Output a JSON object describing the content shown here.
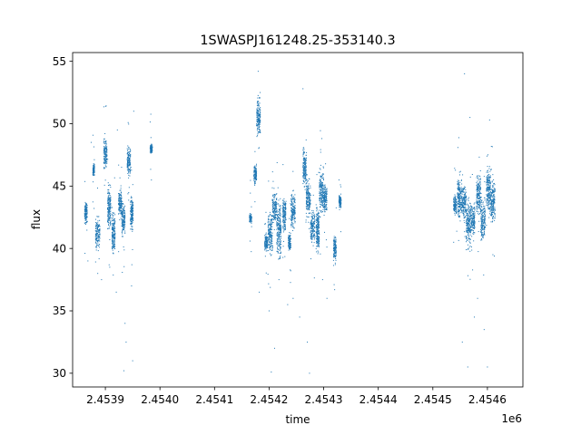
{
  "chart_data": {
    "type": "scatter",
    "title": "1SWASPJ161248.25-353140.3",
    "xlabel": "time",
    "ylabel": "flux",
    "x_offset_label": "1e6",
    "xlim": [
      2453840,
      2454665
    ],
    "ylim": [
      28.9,
      55.7
    ],
    "x_ticks": [
      2453900,
      2454000,
      2454100,
      2454200,
      2454300,
      2454400,
      2454500,
      2454600
    ],
    "x_tick_labels": [
      "2.4539",
      "2.4540",
      "2.4541",
      "2.4542",
      "2.4543",
      "2.4544",
      "2.4545",
      "2.4546"
    ],
    "y_ticks": [
      30,
      35,
      40,
      45,
      50,
      55
    ],
    "y_tick_labels": [
      "30",
      "35",
      "40",
      "45",
      "50",
      "55"
    ],
    "grid": false,
    "marker_color": "#1f77b4",
    "clusters": [
      {
        "x0": 2453862,
        "x1": 2453867,
        "ymin": 41.8,
        "ymax": 44.0
      },
      {
        "x0": 2453877,
        "x1": 2453880,
        "ymin": 45.5,
        "ymax": 47.0
      },
      {
        "x0": 2453882,
        "x1": 2453890,
        "ymin": 39.5,
        "ymax": 42.8
      },
      {
        "x0": 2453897,
        "x1": 2453903,
        "ymin": 46.0,
        "ymax": 49.2
      },
      {
        "x0": 2453904,
        "x1": 2453910,
        "ymin": 41.0,
        "ymax": 45.5
      },
      {
        "x0": 2453912,
        "x1": 2453918,
        "ymin": 39.2,
        "ymax": 43.5
      },
      {
        "x0": 2453924,
        "x1": 2453930,
        "ymin": 42.0,
        "ymax": 45.2
      },
      {
        "x0": 2453930,
        "x1": 2453936,
        "ymin": 40.5,
        "ymax": 44.0
      },
      {
        "x0": 2453940,
        "x1": 2453946,
        "ymin": 45.5,
        "ymax": 48.5
      },
      {
        "x0": 2453946,
        "x1": 2453951,
        "ymin": 41.0,
        "ymax": 44.5
      },
      {
        "x0": 2453982,
        "x1": 2453986,
        "ymin": 47.5,
        "ymax": 48.5
      },
      {
        "x0": 2454164,
        "x1": 2454168,
        "ymin": 41.8,
        "ymax": 43.0
      },
      {
        "x0": 2454172,
        "x1": 2454177,
        "ymin": 45.0,
        "ymax": 47.0
      },
      {
        "x0": 2454177,
        "x1": 2454184,
        "ymin": 48.5,
        "ymax": 52.5
      },
      {
        "x0": 2454192,
        "x1": 2454198,
        "ymin": 39.5,
        "ymax": 41.5
      },
      {
        "x0": 2454198,
        "x1": 2454206,
        "ymin": 39.0,
        "ymax": 43.5
      },
      {
        "x0": 2454206,
        "x1": 2454214,
        "ymin": 41.5,
        "ymax": 45.0
      },
      {
        "x0": 2454214,
        "x1": 2454222,
        "ymin": 38.5,
        "ymax": 44.5
      },
      {
        "x0": 2454225,
        "x1": 2454231,
        "ymin": 41.0,
        "ymax": 44.5
      },
      {
        "x0": 2454235,
        "x1": 2454240,
        "ymin": 39.5,
        "ymax": 41.5
      },
      {
        "x0": 2454240,
        "x1": 2454248,
        "ymin": 41.0,
        "ymax": 45.0
      },
      {
        "x0": 2454262,
        "x1": 2454268,
        "ymin": 44.5,
        "ymax": 48.5
      },
      {
        "x0": 2454268,
        "x1": 2454276,
        "ymin": 42.0,
        "ymax": 46.0
      },
      {
        "x0": 2454276,
        "x1": 2454284,
        "ymin": 40.0,
        "ymax": 43.5
      },
      {
        "x0": 2454286,
        "x1": 2454292,
        "ymin": 39.0,
        "ymax": 44.0
      },
      {
        "x0": 2454292,
        "x1": 2454300,
        "ymin": 42.0,
        "ymax": 47.0
      },
      {
        "x0": 2454300,
        "x1": 2454306,
        "ymin": 42.5,
        "ymax": 45.5
      },
      {
        "x0": 2454318,
        "x1": 2454323,
        "ymin": 38.5,
        "ymax": 41.5
      },
      {
        "x0": 2454328,
        "x1": 2454332,
        "ymin": 43.0,
        "ymax": 44.5
      },
      {
        "x0": 2454538,
        "x1": 2454544,
        "ymin": 42.5,
        "ymax": 44.5
      },
      {
        "x0": 2454545,
        "x1": 2454553,
        "ymin": 41.5,
        "ymax": 46.5
      },
      {
        "x0": 2454553,
        "x1": 2454561,
        "ymin": 42.0,
        "ymax": 45.5
      },
      {
        "x0": 2454561,
        "x1": 2454569,
        "ymin": 39.5,
        "ymax": 44.5
      },
      {
        "x0": 2454569,
        "x1": 2454577,
        "ymin": 40.5,
        "ymax": 44.0
      },
      {
        "x0": 2454580,
        "x1": 2454588,
        "ymin": 42.0,
        "ymax": 46.5
      },
      {
        "x0": 2454588,
        "x1": 2454596,
        "ymin": 40.0,
        "ymax": 44.5
      },
      {
        "x0": 2454598,
        "x1": 2454606,
        "ymin": 42.0,
        "ymax": 47.5
      },
      {
        "x0": 2454606,
        "x1": 2454614,
        "ymin": 41.5,
        "ymax": 46.0
      }
    ],
    "outliers": [
      [
        2453868,
        39.0
      ],
      [
        2453874,
        48.5
      ],
      [
        2453886,
        38.0
      ],
      [
        2453893,
        37.5
      ],
      [
        2453908,
        38.5
      ],
      [
        2453920,
        36.5
      ],
      [
        2453922,
        49.5
      ],
      [
        2453934,
        30.2
      ],
      [
        2453936,
        34.0
      ],
      [
        2453938,
        32.5
      ],
      [
        2453948,
        37.0
      ],
      [
        2453950,
        31.0
      ],
      [
        2453952,
        51.0
      ],
      [
        2454180,
        54.2
      ],
      [
        2454182,
        36.5
      ],
      [
        2454200,
        35.0
      ],
      [
        2454204,
        30.1
      ],
      [
        2454210,
        32.0
      ],
      [
        2454218,
        37.5
      ],
      [
        2454234,
        35.5
      ],
      [
        2454244,
        36.0
      ],
      [
        2454256,
        34.5
      ],
      [
        2454262,
        52.8
      ],
      [
        2454270,
        32.5
      ],
      [
        2454274,
        30.0
      ],
      [
        2454298,
        37.5
      ],
      [
        2454306,
        36.0
      ],
      [
        2454554,
        32.5
      ],
      [
        2454558,
        54.0
      ],
      [
        2454564,
        30.5
      ],
      [
        2454568,
        50.5
      ],
      [
        2454576,
        34.5
      ],
      [
        2454582,
        36.0
      ],
      [
        2454594,
        33.5
      ],
      [
        2454600,
        30.5
      ],
      [
        2454604,
        50.3
      ],
      [
        2454610,
        39.5
      ]
    ]
  }
}
